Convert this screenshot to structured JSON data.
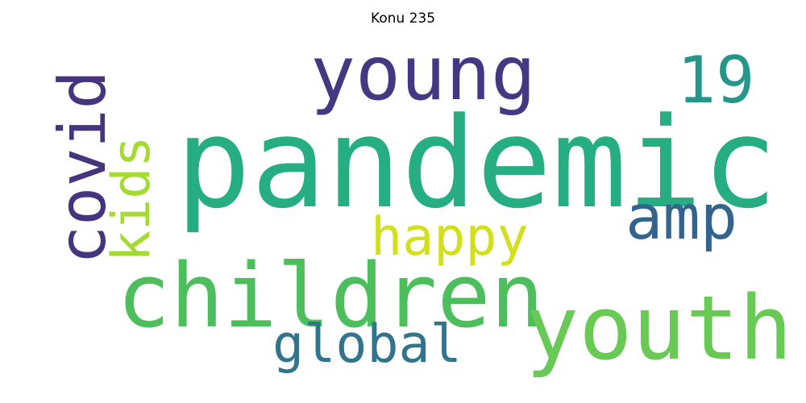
{
  "title": "Konu 235",
  "words": [
    {
      "text": "pandemic",
      "color": "#26ad81"
    },
    {
      "text": "children",
      "color": "#4cbe5c"
    },
    {
      "text": "youth",
      "color": "#68c954"
    },
    {
      "text": "young",
      "color": "#453882"
    },
    {
      "text": "19",
      "color": "#25968a"
    },
    {
      "text": "amp",
      "color": "#33648d"
    },
    {
      "text": "happy",
      "color": "#d2e01c"
    },
    {
      "text": "global",
      "color": "#31748e"
    },
    {
      "text": "covid",
      "color": "#44357e"
    },
    {
      "text": "kids",
      "color": "#a5da31"
    }
  ]
}
